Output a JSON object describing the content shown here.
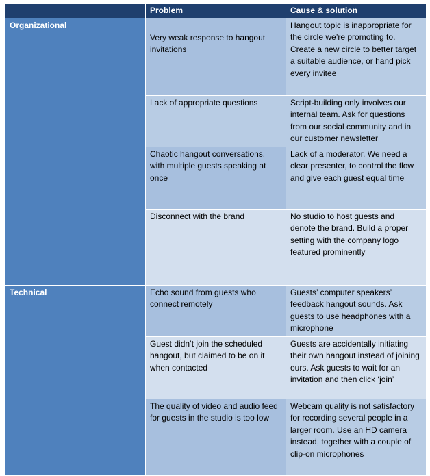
{
  "table": {
    "header": [
      "",
      "Problem",
      "Cause & solution"
    ],
    "groups": [
      {
        "label": "Organizational",
        "rows": [
          {
            "problem": "Very weak response to hangout invitations",
            "solution": "Hangout topic is inappropriate for the circle we’re promoting to. Create a new circle to better target a suitable audience, or hand pick every invitee"
          },
          {
            "problem": "Lack of appropriate questions",
            "solution": "Script-building only involves our internal team. Ask for questions from our social community and in our customer newsletter"
          },
          {
            "problem": "Chaotic hangout conversations, with multiple guests speaking at once",
            "solution": "Lack of a moderator. We need a clear presenter, to control the flow and give each guest equal time"
          },
          {
            "problem": "Disconnect with the brand",
            "solution": "No studio to host guests and denote the brand. Build a proper setting with the company logo featured prominently"
          }
        ]
      },
      {
        "label": "Technical",
        "rows": [
          {
            "problem": "Echo sound from guests who connect remotely",
            "solution": "Guests’ computer speakers’ feedback hangout sounds. Ask guests to use headphones with a microphone"
          },
          {
            "problem": "Guest didn’t join the scheduled hangout, but claimed to be on it when contacted",
            "solution": "Guests are accidentally initiating their own hangout instead of joining ours. Ask guests to wait for an invitation and then click ‘join’"
          },
          {
            "problem": "The quality of video and audio feed for guests in the studio is too low",
            "solution": "Webcam quality is not satisfactory for recording several people in a larger room. Use an HD camera instead, together with a couple of clip-on microphones"
          }
        ]
      }
    ]
  }
}
